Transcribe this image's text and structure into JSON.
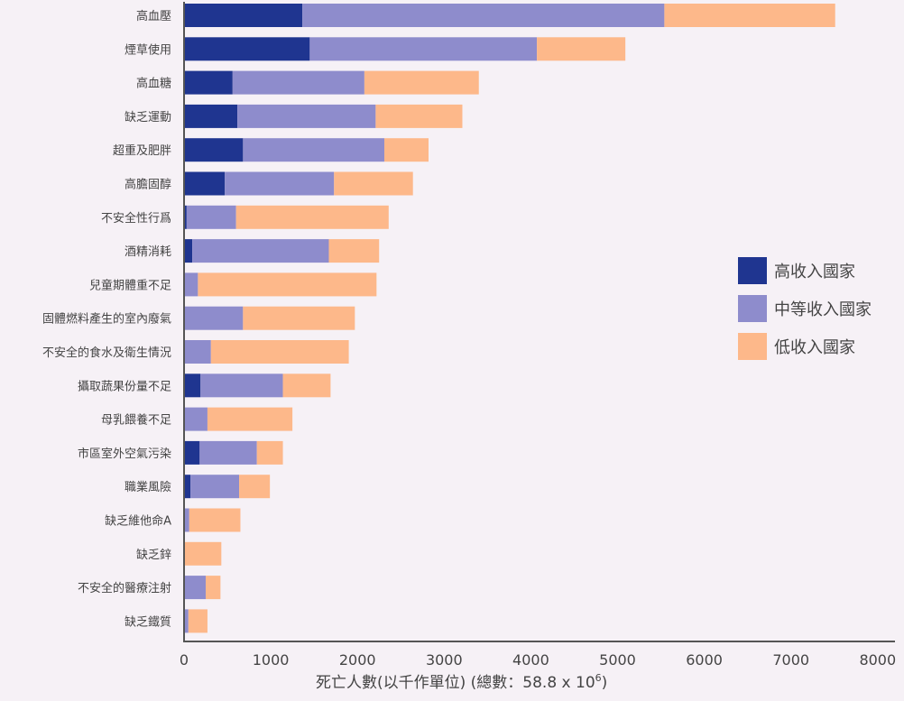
{
  "chart_data": {
    "type": "bar",
    "orientation": "horizontal",
    "stacked": true,
    "title": "",
    "xlabel": "死亡人數(以千作單位) (總數：58.8 x 10⁶)",
    "xlabel_main": "死亡人數(以千作單位) (總數：58.8 x 10",
    "xlabel_sup": "6",
    "xlabel_close": ")",
    "ylabel": "",
    "xlim": [
      0,
      8000
    ],
    "xticks": [
      "0",
      "1000",
      "2000",
      "3000",
      "4000",
      "5000",
      "6000",
      "7000",
      "8000"
    ],
    "grid": false,
    "legend_position": "right",
    "categories": [
      "高血壓",
      "煙草使用",
      "高血糖",
      "缺乏運動",
      "超重及肥胖",
      "高膽固醇",
      "不安全性行爲",
      "酒精消耗",
      "兒童期體重不足",
      "固體燃料產生的室內廢氣",
      "不安全的食水及衛生情況",
      "攝取蔬果份量不足",
      "母乳餵養不足",
      "市區室外空氣污染",
      "職業風險",
      "缺乏維他命A",
      "缺乏鋅",
      "不安全的醫療注射",
      "缺乏鐵質"
    ],
    "series": [
      {
        "name": "高收入國家",
        "color": "#1f3590",
        "values": [
          1365,
          1450,
          560,
          615,
          680,
          470,
          30,
          95,
          10,
          0,
          0,
          190,
          0,
          180,
          75,
          0,
          0,
          0,
          0
        ]
      },
      {
        "name": "中等收入國家",
        "color": "#8e8ccc",
        "values": [
          4175,
          2620,
          1520,
          1595,
          1630,
          1260,
          570,
          1575,
          150,
          680,
          310,
          950,
          270,
          660,
          560,
          60,
          10,
          250,
          50
        ]
      },
      {
        "name": "低收入國家",
        "color": "#fdb88a",
        "values": [
          1970,
          1020,
          1320,
          1000,
          510,
          910,
          1760,
          580,
          2060,
          1290,
          1590,
          550,
          980,
          300,
          355,
          590,
          420,
          170,
          220
        ]
      }
    ]
  }
}
